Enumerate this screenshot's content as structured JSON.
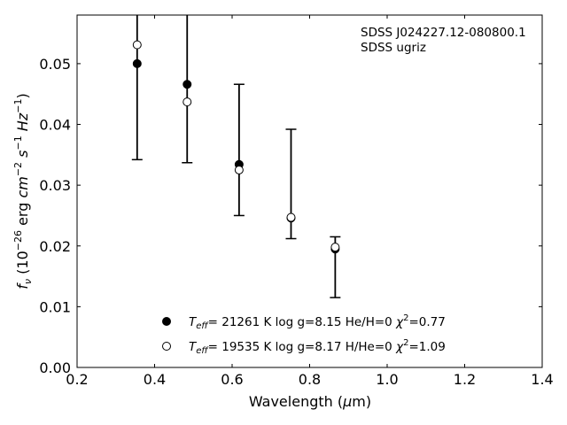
{
  "chart_data": {
    "type": "scatter",
    "annotation_lines": [
      "SDSS J024227.12-080800.1",
      "SDSS ugriz"
    ],
    "xlabel": "Wavelength (μm)",
    "ylabel": "f_ν (10^-26 erg cm^-2 s^-1 Hz^-1)",
    "xlim": [
      0.2,
      1.4
    ],
    "ylim": [
      0.0,
      0.058
    ],
    "xticks": [
      "0.2",
      "0.4",
      "0.6",
      "0.8",
      "1.0",
      "1.2",
      "1.4"
    ],
    "yticks": [
      "0.00",
      "0.01",
      "0.02",
      "0.03",
      "0.04",
      "0.05"
    ],
    "legend_position": "lower center",
    "grid": false,
    "observed": {
      "x": [
        0.355,
        0.484,
        0.618,
        0.752,
        0.866
      ],
      "y": [
        0.05,
        0.0466,
        0.0334,
        0.0246,
        0.0195
      ],
      "err_low": [
        0.0342,
        0.0337,
        0.025,
        0.0212,
        0.0115
      ],
      "err_high": [
        0.06,
        0.06,
        0.0466,
        0.0392,
        0.0215
      ]
    },
    "series": [
      {
        "name": "Teff= 21261 K  log g=8.15  He/H=0  χ2=0.77",
        "marker": "filled",
        "x": [
          0.355,
          0.484,
          0.618,
          0.752,
          0.866
        ],
        "values": [
          0.05,
          0.0466,
          0.0334,
          0.0246,
          0.0195
        ]
      },
      {
        "name": "Teff= 19535 K  log g=8.17  H/He=0  χ2=1.09",
        "marker": "open",
        "x": [
          0.355,
          0.484,
          0.618,
          0.752,
          0.866
        ],
        "values": [
          0.0531,
          0.0437,
          0.0325,
          0.0247,
          0.0198
        ]
      }
    ]
  }
}
